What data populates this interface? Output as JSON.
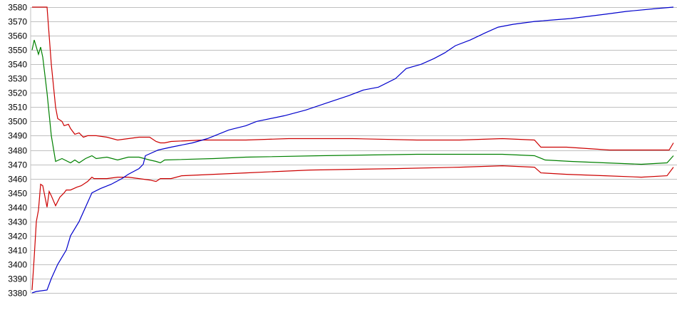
{
  "chart_data": {
    "type": "line",
    "title": "",
    "xlabel": "",
    "ylabel": "",
    "ylim": [
      3380,
      3580
    ],
    "xlim": [
      0,
      300
    ],
    "grid": true,
    "yticks": [
      "3580",
      "3570",
      "3560",
      "3550",
      "3540",
      "3530",
      "3520",
      "3510",
      "3500",
      "3490",
      "3480",
      "3470",
      "3460",
      "3450",
      "3440",
      "3430",
      "3420",
      "3410",
      "3400",
      "3390",
      "3380"
    ],
    "gridline_color": "#c0c0c0",
    "series": [
      {
        "color": "#cc0000",
        "points": [
          [
            0,
            3580
          ],
          [
            7,
            3580
          ],
          [
            9,
            3540
          ],
          [
            11,
            3510
          ],
          [
            12,
            3502
          ],
          [
            14,
            3500
          ],
          [
            15,
            3497
          ],
          [
            17,
            3498
          ],
          [
            18,
            3495
          ],
          [
            20,
            3491
          ],
          [
            22,
            3492
          ],
          [
            24,
            3489
          ],
          [
            26,
            3490
          ],
          [
            30,
            3490
          ],
          [
            35,
            3489
          ],
          [
            40,
            3487
          ],
          [
            45,
            3488
          ],
          [
            50,
            3489
          ],
          [
            55,
            3489
          ],
          [
            58,
            3486
          ],
          [
            60,
            3485
          ],
          [
            62,
            3485
          ],
          [
            65,
            3486
          ],
          [
            80,
            3487
          ],
          [
            100,
            3487
          ],
          [
            120,
            3488
          ],
          [
            150,
            3488
          ],
          [
            180,
            3487
          ],
          [
            200,
            3487
          ],
          [
            220,
            3488
          ],
          [
            235,
            3487
          ],
          [
            238,
            3482
          ],
          [
            250,
            3482
          ],
          [
            260,
            3481
          ],
          [
            270,
            3480
          ],
          [
            290,
            3480
          ],
          [
            298,
            3480
          ],
          [
            300,
            3485
          ]
        ]
      },
      {
        "color": "#008000",
        "points": [
          [
            0,
            3550
          ],
          [
            1,
            3557
          ],
          [
            3,
            3547
          ],
          [
            4,
            3552
          ],
          [
            5,
            3545
          ],
          [
            7,
            3520
          ],
          [
            9,
            3490
          ],
          [
            11,
            3472
          ],
          [
            14,
            3474
          ],
          [
            18,
            3471
          ],
          [
            20,
            3473
          ],
          [
            22,
            3471
          ],
          [
            25,
            3474
          ],
          [
            28,
            3476
          ],
          [
            30,
            3474
          ],
          [
            35,
            3475
          ],
          [
            40,
            3473
          ],
          [
            45,
            3475
          ],
          [
            50,
            3475
          ],
          [
            55,
            3473
          ],
          [
            58,
            3472
          ],
          [
            60,
            3471
          ],
          [
            62,
            3473
          ],
          [
            85,
            3474
          ],
          [
            100,
            3475
          ],
          [
            135,
            3476
          ],
          [
            180,
            3477
          ],
          [
            220,
            3477
          ],
          [
            235,
            3476
          ],
          [
            240,
            3473
          ],
          [
            252,
            3472
          ],
          [
            268,
            3471
          ],
          [
            285,
            3470
          ],
          [
            297,
            3471
          ],
          [
            300,
            3476
          ]
        ]
      },
      {
        "color": "#cc0000",
        "points": [
          [
            0,
            3382
          ],
          [
            1,
            3405
          ],
          [
            2,
            3430
          ],
          [
            3,
            3438
          ],
          [
            4,
            3456
          ],
          [
            5,
            3455
          ],
          [
            7,
            3440
          ],
          [
            8,
            3451
          ],
          [
            9,
            3448
          ],
          [
            11,
            3441
          ],
          [
            13,
            3447
          ],
          [
            15,
            3450
          ],
          [
            16,
            3452
          ],
          [
            18,
            3452
          ],
          [
            21,
            3454
          ],
          [
            23,
            3455
          ],
          [
            26,
            3458
          ],
          [
            28,
            3461
          ],
          [
            29,
            3460
          ],
          [
            32,
            3460
          ],
          [
            35,
            3460
          ],
          [
            40,
            3461
          ],
          [
            45,
            3461
          ],
          [
            50,
            3460
          ],
          [
            55,
            3459
          ],
          [
            58,
            3458
          ],
          [
            60,
            3460
          ],
          [
            65,
            3460
          ],
          [
            70,
            3462
          ],
          [
            85,
            3463
          ],
          [
            100,
            3464
          ],
          [
            130,
            3466
          ],
          [
            170,
            3467
          ],
          [
            200,
            3468
          ],
          [
            220,
            3469
          ],
          [
            235,
            3468
          ],
          [
            238,
            3464
          ],
          [
            250,
            3463
          ],
          [
            268,
            3462
          ],
          [
            285,
            3461
          ],
          [
            297,
            3462
          ],
          [
            300,
            3468
          ]
        ]
      },
      {
        "color": "#0000cc",
        "points": [
          [
            0,
            3380
          ],
          [
            2,
            3381
          ],
          [
            7,
            3382
          ],
          [
            9,
            3390
          ],
          [
            12,
            3400
          ],
          [
            16,
            3410
          ],
          [
            18,
            3420
          ],
          [
            22,
            3430
          ],
          [
            25,
            3440
          ],
          [
            28,
            3450
          ],
          [
            32,
            3453
          ],
          [
            37,
            3456
          ],
          [
            42,
            3460
          ],
          [
            45,
            3463
          ],
          [
            50,
            3467
          ],
          [
            52,
            3470
          ],
          [
            53,
            3476
          ],
          [
            59,
            3480
          ],
          [
            65,
            3482
          ],
          [
            75,
            3485
          ],
          [
            82,
            3488
          ],
          [
            92,
            3494
          ],
          [
            100,
            3497
          ],
          [
            105,
            3500
          ],
          [
            118,
            3504
          ],
          [
            128,
            3508
          ],
          [
            138,
            3513
          ],
          [
            148,
            3518
          ],
          [
            155,
            3522
          ],
          [
            162,
            3524
          ],
          [
            170,
            3530
          ],
          [
            175,
            3537
          ],
          [
            182,
            3540
          ],
          [
            188,
            3544
          ],
          [
            193,
            3548
          ],
          [
            198,
            3553
          ],
          [
            205,
            3557
          ],
          [
            212,
            3562
          ],
          [
            218,
            3566
          ],
          [
            225,
            3568
          ],
          [
            235,
            3570
          ],
          [
            252,
            3572
          ],
          [
            268,
            3575
          ],
          [
            278,
            3577
          ],
          [
            292,
            3579
          ],
          [
            300,
            3580
          ]
        ]
      }
    ]
  }
}
